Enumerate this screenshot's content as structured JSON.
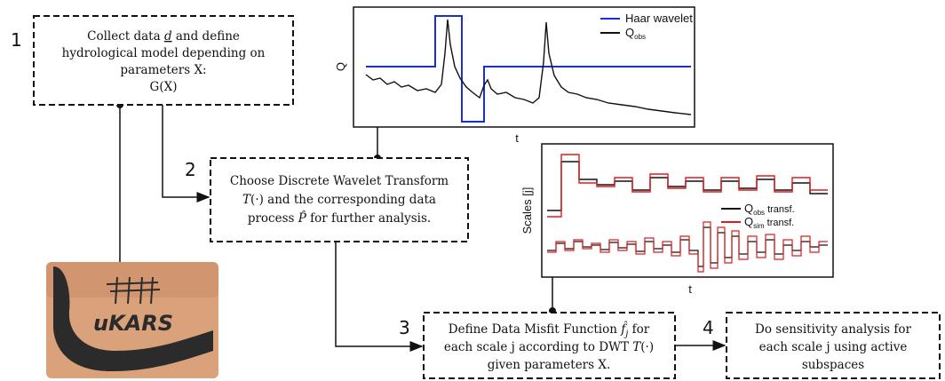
{
  "steps": [
    {
      "number": "1",
      "line1": [
        "Collect data ",
        "d",
        " and define"
      ],
      "line2": "hydrological model depending on",
      "line3": "parameters X:",
      "line4": "G(X)"
    },
    {
      "number": "2",
      "line1": "Choose Discrete Wavelet Transform",
      "line2": [
        "T",
        "(·) and the corresponding data"
      ],
      "line3": [
        "process ",
        "P̂",
        " for further analysis."
      ]
    },
    {
      "number": "3",
      "line1": [
        "Define Data Misfit Function ",
        "f̂",
        "j",
        " for"
      ],
      "line2": [
        "each scale j according to DWT ",
        "T",
        "(·)"
      ],
      "line3": "given parameters X."
    },
    {
      "number": "4",
      "line1": "Do sensitivity analysis for",
      "line2": "each scale j using active",
      "line3": "subspaces"
    }
  ],
  "plots": [
    {
      "y_label": "Q",
      "x_label": "t",
      "legend": [
        {
          "name": "Haar wavelet"
        },
        {
          "name": "Q",
          "sub": "obs"
        }
      ]
    },
    {
      "y_label": "Scales [j]",
      "x_label": "t",
      "legend": [
        {
          "name": "Q",
          "sub": "obs",
          "suffix": " transf."
        },
        {
          "name": "Q",
          "sub": "sim",
          "suffix": " transf."
        }
      ]
    }
  ],
  "logo": {
    "text": "uKARS"
  }
}
